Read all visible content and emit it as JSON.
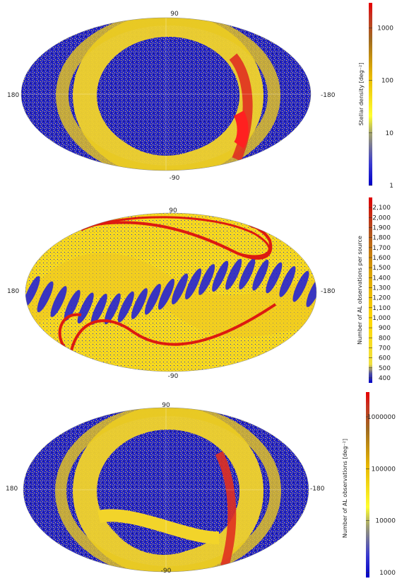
{
  "chart_data": [
    {
      "type": "heatmap",
      "projection": "Mollweide (all-sky)",
      "axis_labels": {
        "top": "90",
        "bottom": "-90",
        "left": "180",
        "right": "-180"
      },
      "colorbar": {
        "title": "Stellar density [deg⁻²]",
        "scale": "log",
        "range": [
          1,
          3000
        ],
        "ticks": [
          "1",
          "10",
          "100",
          "1000"
        ],
        "tick_values": [
          1,
          10,
          100,
          1000
        ]
      }
    },
    {
      "type": "heatmap",
      "projection": "Mollweide (all-sky)",
      "axis_labels": {
        "top": "90",
        "bottom": "-90",
        "left": "180",
        "right": "-180"
      },
      "colorbar": {
        "title": "Number of AL observations per source",
        "scale": "linear",
        "range": [
          350,
          2200
        ],
        "ticks": [
          "400",
          "500",
          "600",
          "700",
          "800",
          "900",
          "1,000",
          "1,100",
          "1,200",
          "1,300",
          "1,400",
          "1,500",
          "1,600",
          "1,700",
          "1,800",
          "1,900",
          "2,000",
          "2,100"
        ],
        "tick_values": [
          400,
          500,
          600,
          700,
          800,
          900,
          1000,
          1100,
          1200,
          1300,
          1400,
          1500,
          1600,
          1700,
          1800,
          1900,
          2000,
          2100
        ]
      }
    },
    {
      "type": "heatmap",
      "projection": "Mollweide (all-sky)",
      "axis_labels": {
        "top": "90",
        "bottom": "-90",
        "left": "180",
        "right": "-180"
      },
      "colorbar": {
        "title": "Number of AL observations [deg⁻²]",
        "scale": "log",
        "range": [
          800,
          3000000
        ],
        "ticks": [
          "1000",
          "10000",
          "100000",
          "1000000"
        ],
        "tick_values": [
          1000,
          10000,
          100000,
          1000000
        ]
      }
    }
  ],
  "colors": {
    "low": "#1a1adc",
    "mid_low": "#7a7a9a",
    "mid": "#ffe000",
    "mid_high": "#d4a000",
    "high": "#d81818"
  }
}
